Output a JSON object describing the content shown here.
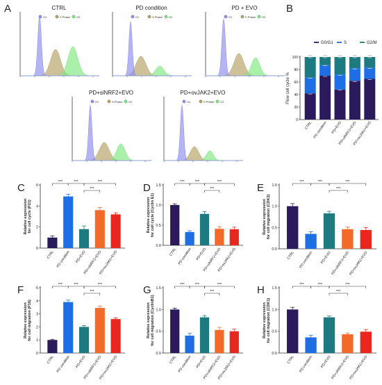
{
  "colors": {
    "g1": "#8c8cf0",
    "s": "#b4a064",
    "g2": "#7ce67c",
    "bar_purple": "#2b1a5c",
    "bar_blue": "#1e6fe6",
    "bar_teal": "#1d7a80",
    "bar_orange": "#f26a2a",
    "bar_red": "#e8281f"
  },
  "chart_data": [
    {
      "panel": "A",
      "type": "area",
      "subpanels": [
        {
          "title": "CTRL",
          "legend": [
            "G1",
            "S Phase",
            "G2"
          ]
        },
        {
          "title": "PD condition",
          "legend": [
            "G1",
            "S Phase",
            "G2"
          ]
        },
        {
          "title": "PD + EVO",
          "legend": [
            "G1",
            "S Phase",
            "G2"
          ]
        },
        {
          "title": "PD+siNRF2+EVO",
          "legend": [
            "G1",
            "S Phase",
            "G2"
          ]
        },
        {
          "title": "PD+ovJAK2+EVO",
          "legend": [
            "G1",
            "S Phase",
            "G2"
          ]
        }
      ]
    },
    {
      "panel": "B",
      "type": "bar",
      "stacked": true,
      "ylabel": "Flow cell cycle %",
      "ylim": [
        0,
        100
      ],
      "yticks": [
        0,
        20,
        40,
        60,
        80,
        100
      ],
      "categories": [
        "CTRL",
        "PD condition",
        "PD+EVO",
        "PD+siNRF2+EVO",
        "PD+ovJAK2+EVO"
      ],
      "legend_position": "top",
      "series": [
        {
          "name": "G0/G1",
          "values": [
            42,
            70,
            48,
            62,
            65
          ]
        },
        {
          "name": "S",
          "values": [
            25,
            17,
            24,
            20,
            18
          ]
        },
        {
          "name": "G2/M",
          "values": [
            33,
            13,
            28,
            18,
            17
          ]
        }
      ]
    },
    {
      "panel": "C",
      "type": "bar",
      "ylabel": "Relative expression\nfor cell cycle (P21)",
      "ylim": [
        0,
        6
      ],
      "yticks": [
        0,
        2,
        4,
        6
      ],
      "categories": [
        "CTRL",
        "PD condition",
        "PD+EVO",
        "PD+siNRF2+EVO",
        "PD+ovJAK2+EVO"
      ],
      "values": [
        1.0,
        4.9,
        1.8,
        3.6,
        3.2
      ],
      "errors": [
        0.15,
        0.2,
        0.3,
        0.25,
        0.15
      ],
      "significance": [
        "***",
        "***",
        "***",
        "***"
      ]
    },
    {
      "panel": "D",
      "type": "bar",
      "ylabel": "Relative expression\nfor cell cycle (Cyclin E1)",
      "ylim": [
        0,
        1.5
      ],
      "yticks": [
        0.0,
        0.5,
        1.0,
        1.5
      ],
      "categories": [
        "CTRL",
        "PD condition",
        "PD+EVO",
        "PD+siNRF2+EVO",
        "PD+ovJAK2+EVO"
      ],
      "values": [
        1.0,
        0.33,
        0.78,
        0.41,
        0.4
      ],
      "errors": [
        0.03,
        0.03,
        0.06,
        0.05,
        0.05
      ],
      "significance": [
        "***",
        "***",
        "***",
        "***"
      ]
    },
    {
      "panel": "E",
      "type": "bar",
      "ylabel": "Relative expression\nfor cell migration (CDK2)",
      "ylim": [
        0,
        1.5
      ],
      "yticks": [
        0.0,
        0.5,
        1.0,
        1.5
      ],
      "categories": [
        "CTRL",
        "PD condition",
        "PD+EVO",
        "PD+siNRF2+EVO",
        "PD+ovJAK2+EVO"
      ],
      "values": [
        1.0,
        0.35,
        0.83,
        0.46,
        0.44
      ],
      "errors": [
        0.06,
        0.05,
        0.05,
        0.05,
        0.06
      ],
      "significance": [
        "***",
        "***",
        "***",
        "***"
      ]
    },
    {
      "panel": "F",
      "type": "bar",
      "ylabel": "Relative expression\nfor cell migration (P16)",
      "ylim": [
        0,
        5
      ],
      "yticks": [
        0,
        1,
        2,
        3,
        4,
        5
      ],
      "categories": [
        "CTRL",
        "PD condition",
        "PD+EVO",
        "PD+siNRF2+EVO",
        "PD+ovJAK2+EVO"
      ],
      "values": [
        1.0,
        3.9,
        2.0,
        3.45,
        2.6
      ],
      "errors": [
        0.05,
        0.15,
        0.1,
        0.15,
        0.1
      ],
      "significance": [
        "***",
        "***",
        "***",
        "***"
      ]
    },
    {
      "panel": "G",
      "type": "bar",
      "ylabel": "Relative expression\nfor cell migration (CyclinB1)",
      "ylim": [
        0,
        1.5
      ],
      "yticks": [
        0.0,
        0.5,
        1.0,
        1.5
      ],
      "categories": [
        "CTRL",
        "PD condition",
        "PD+EVO",
        "PD+siNRF2+EVO",
        "PD+ovJAK2+EVO"
      ],
      "values": [
        1.0,
        0.4,
        0.82,
        0.53,
        0.5
      ],
      "errors": [
        0.03,
        0.05,
        0.04,
        0.06,
        0.05
      ],
      "significance": [
        "***",
        "***",
        "***",
        "***"
      ]
    },
    {
      "panel": "H",
      "type": "bar",
      "ylabel": "Relative expression\nfor cell migration (CDK1)",
      "ylim": [
        0,
        1.5
      ],
      "yticks": [
        0.0,
        0.5,
        1.0,
        1.5
      ],
      "categories": [
        "CTRL",
        "PD condition",
        "PD+EVO",
        "PD+siNRF2+EVO",
        "PD+ovJAK2+EVO"
      ],
      "values": [
        1.0,
        0.36,
        0.82,
        0.43,
        0.49
      ],
      "errors": [
        0.05,
        0.05,
        0.03,
        0.03,
        0.05
      ],
      "significance": [
        "***",
        "***",
        "***",
        "***"
      ]
    }
  ]
}
